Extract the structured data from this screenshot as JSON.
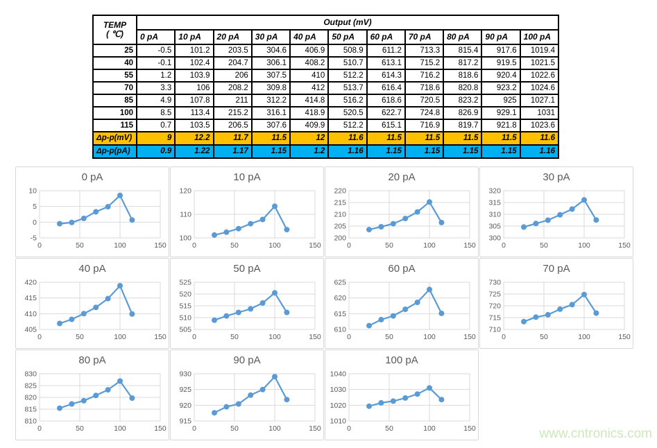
{
  "table": {
    "corner_line1": "TEMP",
    "corner_line2": "( ℃)",
    "output_header": "Output (mV)",
    "current_headers": [
      "0 pA",
      "10 pA",
      "20 pA",
      "30 pA",
      "40 pA",
      "50 pA",
      "60 pA",
      "70 pA",
      "80 pA",
      "90 pA",
      "100 pA"
    ],
    "rows": [
      {
        "temp": "25",
        "values": [
          "-0.5",
          "101.2",
          "203.5",
          "304.6",
          "406.9",
          "508.9",
          "611.2",
          "713.3",
          "815.4",
          "917.6",
          "1019.4"
        ]
      },
      {
        "temp": "40",
        "values": [
          "-0.1",
          "102.4",
          "204.7",
          "306.1",
          "408.2",
          "510.7",
          "613.1",
          "715.2",
          "817.2",
          "919.5",
          "1021.5"
        ]
      },
      {
        "temp": "55",
        "values": [
          "1.2",
          "103.9",
          "206",
          "307.5",
          "410",
          "512.2",
          "614.3",
          "716.2",
          "818.6",
          "920.4",
          "1022.6"
        ]
      },
      {
        "temp": "70",
        "values": [
          "3.3",
          "106",
          "208.2",
          "309.8",
          "412",
          "513.7",
          "616.4",
          "718.6",
          "820.8",
          "923.2",
          "1024.6"
        ]
      },
      {
        "temp": "85",
        "values": [
          "4.9",
          "107.8",
          "211",
          "312.2",
          "414.8",
          "516.2",
          "618.6",
          "720.5",
          "823.2",
          "925",
          "1027.1"
        ]
      },
      {
        "temp": "100",
        "values": [
          "8.5",
          "113.4",
          "215.2",
          "316.1",
          "418.9",
          "520.5",
          "622.7",
          "724.8",
          "826.9",
          "929.1",
          "1031"
        ]
      },
      {
        "temp": "115",
        "values": [
          "0.7",
          "103.5",
          "206.5",
          "307.6",
          "409.9",
          "512.2",
          "615.1",
          "716.9",
          "819.7",
          "921.8",
          "1023.6"
        ]
      }
    ],
    "delta_rows": [
      {
        "label": "Δp-p(mV)",
        "bg": "#FFC000",
        "values": [
          "9",
          "12.2",
          "11.7",
          "11.5",
          "12",
          "11.6",
          "11.5",
          "11.5",
          "11.5",
          "11.5",
          "11.6"
        ]
      },
      {
        "label": "Δp-p(pA)",
        "bg": "#00B0F0",
        "values": [
          "0.9",
          "1.22",
          "1.17",
          "1.15",
          "1.2",
          "1.16",
          "1.15",
          "1.15",
          "1.15",
          "1.15",
          "1.16"
        ]
      }
    ]
  },
  "chart_data": [
    {
      "type": "line",
      "title": "0 pA",
      "x": [
        25,
        40,
        55,
        70,
        85,
        100,
        115
      ],
      "values": [
        -0.5,
        -0.1,
        1.2,
        3.3,
        4.9,
        8.5,
        0.7
      ],
      "xlim": [
        0,
        150
      ],
      "xticks": [
        0,
        50,
        100,
        150
      ],
      "ylim": [
        -5,
        10
      ],
      "yticks": [
        -5,
        0,
        5,
        10
      ]
    },
    {
      "type": "line",
      "title": "10 pA",
      "x": [
        25,
        40,
        55,
        70,
        85,
        100,
        115
      ],
      "values": [
        101.2,
        102.4,
        103.9,
        106,
        107.8,
        113.4,
        103.5
      ],
      "xlim": [
        0,
        150
      ],
      "xticks": [
        0,
        50,
        100,
        150
      ],
      "ylim": [
        100,
        120
      ],
      "yticks": [
        100,
        110,
        120
      ]
    },
    {
      "type": "line",
      "title": "20 pA",
      "x": [
        25,
        40,
        55,
        70,
        85,
        100,
        115
      ],
      "values": [
        203.5,
        204.7,
        206,
        208.2,
        211,
        215.2,
        206.5
      ],
      "xlim": [
        0,
        150
      ],
      "xticks": [
        0,
        50,
        100,
        150
      ],
      "ylim": [
        200,
        220
      ],
      "yticks": [
        200,
        205,
        210,
        215,
        220
      ]
    },
    {
      "type": "line",
      "title": "30 pA",
      "x": [
        25,
        40,
        55,
        70,
        85,
        100,
        115
      ],
      "values": [
        304.6,
        306.1,
        307.5,
        309.8,
        312.2,
        316.1,
        307.6
      ],
      "xlim": [
        0,
        150
      ],
      "xticks": [
        0,
        50,
        100,
        150
      ],
      "ylim": [
        300,
        320
      ],
      "yticks": [
        300,
        305,
        310,
        315,
        320
      ]
    },
    {
      "type": "line",
      "title": "40 pA",
      "x": [
        25,
        40,
        55,
        70,
        85,
        100,
        115
      ],
      "values": [
        406.9,
        408.2,
        410,
        412,
        414.8,
        418.9,
        409.9
      ],
      "xlim": [
        0,
        150
      ],
      "xticks": [
        0,
        50,
        100,
        150
      ],
      "ylim": [
        405,
        420
      ],
      "yticks": [
        405,
        410,
        415,
        420
      ]
    },
    {
      "type": "line",
      "title": "50 pA",
      "x": [
        25,
        40,
        55,
        70,
        85,
        100,
        115
      ],
      "values": [
        508.9,
        510.7,
        512.2,
        513.7,
        516.2,
        520.5,
        512.2
      ],
      "xlim": [
        0,
        150
      ],
      "xticks": [
        0,
        50,
        100,
        150
      ],
      "ylim": [
        505,
        525
      ],
      "yticks": [
        505,
        510,
        515,
        520,
        525
      ]
    },
    {
      "type": "line",
      "title": "60 pA",
      "x": [
        25,
        40,
        55,
        70,
        85,
        100,
        115
      ],
      "values": [
        611.2,
        613.1,
        614.3,
        616.4,
        618.6,
        622.7,
        615.1
      ],
      "xlim": [
        0,
        150
      ],
      "xticks": [
        0,
        50,
        100,
        150
      ],
      "ylim": [
        610,
        625
      ],
      "yticks": [
        610,
        615,
        620,
        625
      ]
    },
    {
      "type": "line",
      "title": "70 pA",
      "x": [
        25,
        40,
        55,
        70,
        85,
        100,
        115
      ],
      "values": [
        713.3,
        715.2,
        716.2,
        718.6,
        720.5,
        724.8,
        716.9
      ],
      "xlim": [
        0,
        150
      ],
      "xticks": [
        0,
        50,
        100,
        150
      ],
      "ylim": [
        710,
        730
      ],
      "yticks": [
        710,
        715,
        720,
        725,
        730
      ]
    },
    {
      "type": "line",
      "title": "80 pA",
      "x": [
        25,
        40,
        55,
        70,
        85,
        100,
        115
      ],
      "values": [
        815.4,
        817.2,
        818.6,
        820.8,
        823.2,
        826.9,
        819.7
      ],
      "xlim": [
        0,
        150
      ],
      "xticks": [
        0,
        50,
        100,
        150
      ],
      "ylim": [
        810,
        830
      ],
      "yticks": [
        810,
        815,
        820,
        825,
        830
      ]
    },
    {
      "type": "line",
      "title": "90 pA",
      "x": [
        25,
        40,
        55,
        70,
        85,
        100,
        115
      ],
      "values": [
        917.6,
        919.5,
        920.4,
        923.2,
        925,
        929.1,
        921.8
      ],
      "xlim": [
        0,
        150
      ],
      "xticks": [
        0,
        50,
        100,
        150
      ],
      "ylim": [
        915,
        930
      ],
      "yticks": [
        915,
        920,
        925,
        930
      ]
    },
    {
      "type": "line",
      "title": "100 pA",
      "x": [
        25,
        40,
        55,
        70,
        85,
        100,
        115
      ],
      "values": [
        1019.4,
        1021.5,
        1022.6,
        1024.6,
        1027.1,
        1031,
        1023.6
      ],
      "xlim": [
        0,
        150
      ],
      "xticks": [
        0,
        50,
        100,
        150
      ],
      "ylim": [
        1010,
        1040
      ],
      "yticks": [
        1010,
        1020,
        1030,
        1040
      ]
    }
  ],
  "watermark": "www.cntronics.com",
  "colors": {
    "line": "#5B9BD5",
    "grid": "#D9D9D9",
    "axis_text": "#595959",
    "title_text": "#595959",
    "delta_mv_bg": "#FFC000",
    "delta_pa_bg": "#00B0F0",
    "watermark": "#CDE9B9"
  }
}
